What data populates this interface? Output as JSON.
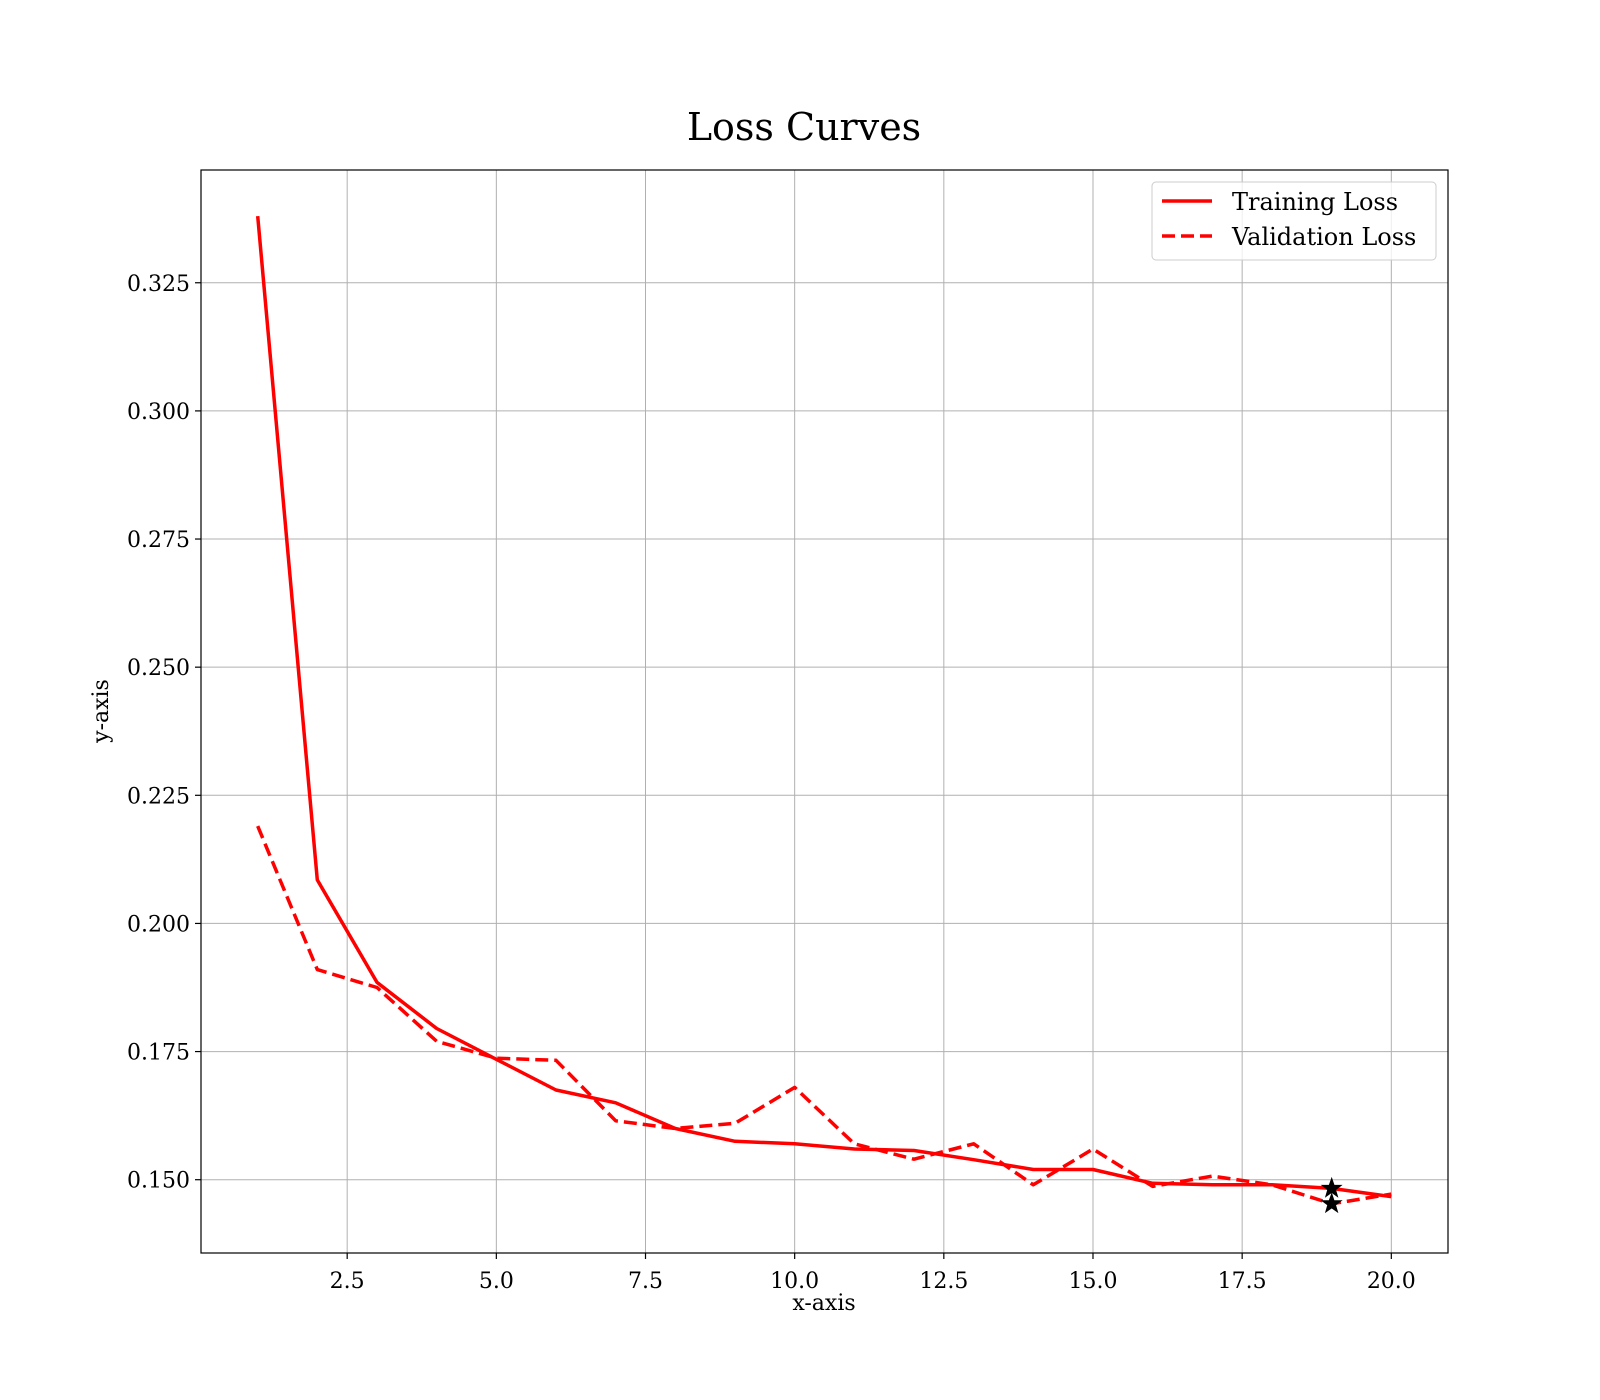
{
  "chart_data": {
    "type": "line",
    "title": "Loss Curves",
    "xlabel": "x-axis",
    "ylabel": "y-axis",
    "xlim": [
      0.05,
      20.95
    ],
    "ylim": [
      0.1357,
      0.347
    ],
    "xticks": [
      2.5,
      5.0,
      7.5,
      10.0,
      12.5,
      15.0,
      17.5,
      20.0
    ],
    "xtick_labels": [
      "2.5",
      "5.0",
      "7.5",
      "10.0",
      "12.5",
      "15.0",
      "17.5",
      "20.0"
    ],
    "yticks": [
      0.15,
      0.175,
      0.2,
      0.225,
      0.25,
      0.275,
      0.3,
      0.325
    ],
    "ytick_labels": [
      "0.150",
      "0.175",
      "0.200",
      "0.225",
      "0.250",
      "0.275",
      "0.300",
      "0.325"
    ],
    "grid": true,
    "legend_position": "top-right",
    "x": [
      1,
      2,
      3,
      4,
      5,
      6,
      7,
      8,
      9,
      10,
      11,
      12,
      13,
      14,
      15,
      16,
      17,
      18,
      19,
      20
    ],
    "series": [
      {
        "name": "Training Loss",
        "style": "solid",
        "color": "#ff0000",
        "values": [
          0.338,
          0.2085,
          0.1885,
          0.1795,
          0.1735,
          0.1675,
          0.165,
          0.16,
          0.1575,
          0.157,
          0.156,
          0.1557,
          0.1539,
          0.152,
          0.152,
          0.1493,
          0.149,
          0.149,
          0.1483,
          0.1467
        ]
      },
      {
        "name": "Validation Loss",
        "style": "dashed",
        "color": "#ff0000",
        "values": [
          0.219,
          0.191,
          0.1875,
          0.177,
          0.1737,
          0.1733,
          0.1615,
          0.16,
          0.161,
          0.168,
          0.157,
          0.154,
          0.157,
          0.149,
          0.156,
          0.1487,
          0.1507,
          0.149,
          0.1453,
          0.1472
        ]
      }
    ],
    "markers": [
      {
        "x": 19,
        "y": 0.1483,
        "symbol": "star",
        "color": "#000000"
      },
      {
        "x": 19,
        "y": 0.1453,
        "symbol": "star",
        "color": "#000000"
      }
    ]
  }
}
